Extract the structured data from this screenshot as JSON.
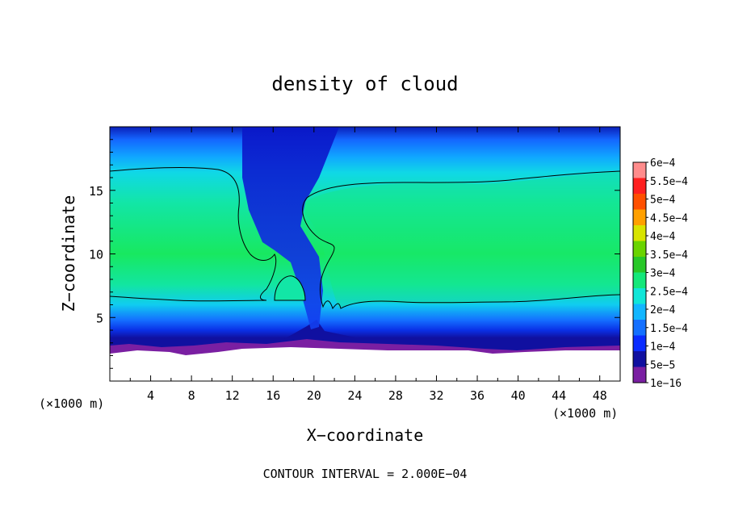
{
  "chart_data": {
    "type": "heatmap",
    "title": "density of cloud",
    "xlabel": "X−coordinate",
    "ylabel": "Z−coordinate",
    "x_unit_left": "(×1000 m)",
    "x_unit_right": "(×1000 m)",
    "footnote": "CONTOUR INTERVAL = 2.000E−04",
    "xlim": [
      0,
      50
    ],
    "ylim": [
      0,
      20
    ],
    "x_ticks": [
      4,
      8,
      12,
      16,
      20,
      24,
      28,
      32,
      36,
      40,
      44,
      48
    ],
    "x_tick_labels": [
      "4",
      "8",
      "12",
      "16",
      "20",
      "24",
      "28",
      "32",
      "36",
      "40",
      "44",
      "48"
    ],
    "y_ticks": [
      5,
      10,
      15
    ],
    "y_tick_labels": [
      "5",
      "10",
      "15"
    ],
    "colorbar": {
      "levels": [
        "1e−16",
        "5e−5",
        "1e−4",
        "1.5e−4",
        "2e−4",
        "2.5e−4",
        "3e−4",
        "3.5e−4",
        "4e−4",
        "4.5e−4",
        "5e−4",
        "5.5e−4",
        "6e−4"
      ],
      "colors": [
        "#7a1fa2",
        "#1010a0",
        "#0a2cff",
        "#1470ff",
        "#12b6ff",
        "#10e6d8",
        "#14e87a",
        "#28c828",
        "#6ad400",
        "#d8e400",
        "#ffa000",
        "#ff5000",
        "#ff2020",
        "#ff8c8c"
      ]
    },
    "field_description_values": {
      "cloud_base_z_km": 3,
      "cloud_top_z_km": 16.5,
      "contour_level": 0.0002
    }
  }
}
